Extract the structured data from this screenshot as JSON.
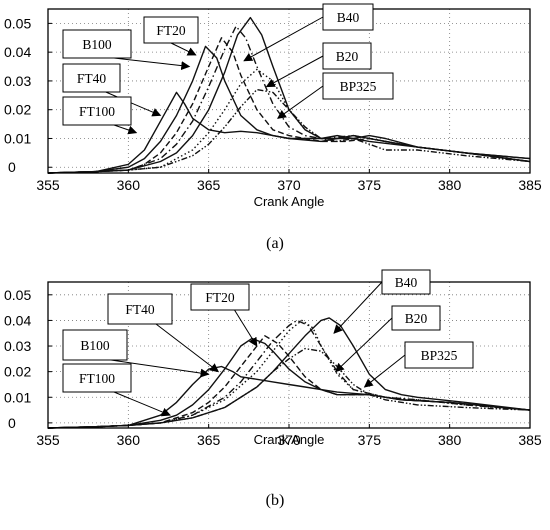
{
  "chart_data": [
    {
      "panel_label": "(a)",
      "type": "line",
      "xlabel": "Crank Angle",
      "ylabel": "",
      "xlim": [
        355,
        385
      ],
      "ylim": [
        -0.002,
        0.055
      ],
      "xticks": [
        "355",
        "360",
        "365",
        "370",
        "375",
        "380",
        "385"
      ],
      "yticks": [
        "0",
        "0.01",
        "0.02",
        "0.03",
        "0.04",
        "0.05"
      ],
      "grid": "dotted",
      "series": [
        {
          "name": "FT100",
          "style": "solid",
          "x": [
            355,
            358,
            360,
            361,
            362,
            362.5,
            363,
            363.5,
            364,
            365,
            366,
            367,
            368,
            369,
            370,
            372,
            373,
            375,
            378,
            381,
            385
          ],
          "y": [
            -0.002,
            -0.0015,
            0.001,
            0.006,
            0.016,
            0.021,
            0.026,
            0.022,
            0.017,
            0.013,
            0.012,
            0.0125,
            0.012,
            0.011,
            0.01,
            0.01,
            0.011,
            0.009,
            0.007,
            0.005,
            0.003
          ]
        },
        {
          "name": "FT40",
          "style": "solid",
          "x": [
            355,
            358,
            360,
            361,
            362,
            363,
            364,
            364.8,
            365.5,
            366,
            367,
            368,
            369,
            370,
            372,
            373,
            374,
            376,
            378,
            381,
            385
          ],
          "y": [
            -0.002,
            -0.0015,
            0.0,
            0.003,
            0.009,
            0.018,
            0.03,
            0.042,
            0.038,
            0.03,
            0.018,
            0.013,
            0.011,
            0.01,
            0.009,
            0.01,
            0.011,
            0.009,
            0.007,
            0.005,
            0.003
          ]
        },
        {
          "name": "B100",
          "style": "dashed",
          "x": [
            355,
            358,
            360,
            361,
            362,
            363,
            364,
            365,
            365.8,
            366.5,
            367,
            368,
            369,
            370,
            372,
            373.5,
            375,
            378,
            381,
            385
          ],
          "y": [
            -0.002,
            -0.0015,
            -0.001,
            0.001,
            0.005,
            0.012,
            0.022,
            0.035,
            0.045,
            0.04,
            0.032,
            0.02,
            0.013,
            0.011,
            0.009,
            0.009,
            0.01,
            0.007,
            0.005,
            0.002
          ]
        },
        {
          "name": "FT20",
          "style": "dashdot",
          "x": [
            355,
            358,
            360,
            362,
            363,
            364,
            365,
            366,
            366.7,
            367.3,
            368,
            369,
            370,
            371,
            372,
            374,
            376,
            378,
            381,
            385
          ],
          "y": [
            -0.002,
            -0.0015,
            -0.001,
            0.003,
            0.008,
            0.016,
            0.028,
            0.041,
            0.049,
            0.045,
            0.035,
            0.022,
            0.014,
            0.011,
            0.01,
            0.011,
            0.009,
            0.007,
            0.005,
            0.002
          ]
        },
        {
          "name": "B40",
          "style": "solid",
          "x": [
            355,
            358,
            360,
            362,
            363,
            364,
            365,
            366,
            366.8,
            367.6,
            368.3,
            369,
            370,
            371,
            372,
            374,
            375,
            376,
            378,
            381,
            385
          ],
          "y": [
            -0.002,
            -0.0015,
            -0.001,
            0.002,
            0.005,
            0.011,
            0.02,
            0.033,
            0.046,
            0.052,
            0.046,
            0.035,
            0.02,
            0.013,
            0.01,
            0.01,
            0.011,
            0.01,
            0.007,
            0.005,
            0.002
          ]
        },
        {
          "name": "B20",
          "style": "dotted",
          "x": [
            355,
            358,
            360,
            362,
            364,
            365,
            366,
            367,
            368,
            369,
            370,
            371,
            372,
            373,
            374,
            376,
            378,
            381,
            385
          ],
          "y": [
            -0.002,
            -0.0015,
            -0.001,
            0.0,
            0.006,
            0.012,
            0.02,
            0.029,
            0.034,
            0.03,
            0.02,
            0.013,
            0.01,
            0.01,
            0.011,
            0.009,
            0.007,
            0.005,
            0.002
          ]
        },
        {
          "name": "BP325",
          "style": "dashdotdot",
          "x": [
            355,
            358,
            360,
            362,
            364,
            365,
            366,
            367,
            368,
            369,
            370,
            371,
            372,
            373,
            374,
            375,
            376,
            378,
            381,
            385
          ],
          "y": [
            -0.002,
            -0.0015,
            -0.001,
            0.0,
            0.004,
            0.008,
            0.014,
            0.021,
            0.027,
            0.026,
            0.02,
            0.014,
            0.01,
            0.009,
            0.01,
            0.008,
            0.006,
            0.006,
            0.004,
            0.002
          ]
        }
      ],
      "callouts": [
        {
          "label": "B100",
          "tip": [
            363.8,
            0.035
          ]
        },
        {
          "label": "FT20",
          "tip": [
            364.2,
            0.039
          ]
        },
        {
          "label": "B40",
          "tip": [
            367.2,
            0.037
          ]
        },
        {
          "label": "FT40",
          "tip": [
            362.0,
            0.018
          ]
        },
        {
          "label": "B20",
          "tip": [
            368.6,
            0.028
          ]
        },
        {
          "label": "BP325",
          "tip": [
            369.3,
            0.017
          ]
        },
        {
          "label": "FT100",
          "tip": [
            360.5,
            0.012
          ]
        }
      ]
    },
    {
      "panel_label": "(b)",
      "type": "line",
      "xlabel": "Crank Angle",
      "ylabel": "",
      "xlim": [
        355,
        385
      ],
      "ylim": [
        -0.002,
        0.055
      ],
      "xticks": [
        "355",
        "360",
        "365",
        "370",
        "375",
        "380",
        "385"
      ],
      "yticks": [
        "0",
        "0.01",
        "0.02",
        "0.03",
        "0.04",
        "0.05"
      ],
      "grid": "dotted",
      "series": [
        {
          "name": "FT100",
          "style": "solid",
          "x": [
            355,
            358,
            360,
            362,
            363,
            364,
            365,
            365.8,
            366.5,
            367,
            368,
            369,
            370,
            371,
            372,
            373,
            375,
            377,
            380,
            385
          ],
          "y": [
            -0.002,
            -0.0015,
            -0.001,
            0.003,
            0.008,
            0.015,
            0.021,
            0.022,
            0.02,
            0.018,
            0.017,
            0.016,
            0.015,
            0.014,
            0.013,
            0.012,
            0.011,
            0.009,
            0.008,
            0.005
          ]
        },
        {
          "name": "FT40",
          "style": "solid",
          "x": [
            355,
            358,
            360,
            362,
            363,
            364,
            365,
            366,
            367,
            367.7,
            368.5,
            369,
            370,
            371,
            372,
            373,
            375,
            377,
            380,
            385
          ],
          "y": [
            -0.002,
            -0.0015,
            -0.001,
            0.001,
            0.003,
            0.007,
            0.013,
            0.021,
            0.03,
            0.033,
            0.031,
            0.028,
            0.021,
            0.016,
            0.013,
            0.011,
            0.011,
            0.009,
            0.008,
            0.005
          ]
        },
        {
          "name": "B100",
          "style": "dashed",
          "x": [
            355,
            358,
            360,
            362,
            364,
            365,
            366,
            367,
            368,
            368.5,
            369.3,
            370,
            371,
            372,
            373,
            375,
            377,
            380,
            385
          ],
          "y": [
            -0.002,
            -0.0015,
            -0.001,
            0.0,
            0.004,
            0.008,
            0.014,
            0.022,
            0.03,
            0.034,
            0.031,
            0.026,
            0.018,
            0.013,
            0.011,
            0.011,
            0.009,
            0.008,
            0.005
          ]
        },
        {
          "name": "FT20",
          "style": "dashdot",
          "x": [
            355,
            358,
            360,
            362,
            364,
            366,
            367,
            368,
            369,
            370,
            370.5,
            371.2,
            372,
            373,
            374,
            376,
            378,
            381,
            385
          ],
          "y": [
            -0.002,
            -0.0015,
            -0.001,
            0.0,
            0.003,
            0.01,
            0.016,
            0.024,
            0.032,
            0.038,
            0.04,
            0.038,
            0.03,
            0.02,
            0.013,
            0.01,
            0.009,
            0.007,
            0.005
          ]
        },
        {
          "name": "B40",
          "style": "solid",
          "x": [
            355,
            358,
            360,
            362,
            364,
            366,
            368,
            369,
            370,
            371,
            372,
            372.5,
            373.2,
            374,
            375,
            376,
            377,
            378,
            381,
            385
          ],
          "y": [
            -0.002,
            -0.0015,
            -0.001,
            0.0,
            0.002,
            0.006,
            0.014,
            0.02,
            0.027,
            0.034,
            0.04,
            0.041,
            0.038,
            0.03,
            0.019,
            0.013,
            0.011,
            0.01,
            0.008,
            0.005
          ]
        },
        {
          "name": "B20",
          "style": "dotted",
          "x": [
            355,
            358,
            360,
            362,
            364,
            366,
            368,
            369,
            370,
            370.8,
            371.5,
            372,
            373,
            374,
            376,
            378,
            381,
            385
          ],
          "y": [
            -0.002,
            -0.0015,
            -0.001,
            0.0,
            0.003,
            0.009,
            0.02,
            0.028,
            0.036,
            0.04,
            0.037,
            0.03,
            0.019,
            0.013,
            0.01,
            0.009,
            0.007,
            0.005
          ]
        },
        {
          "name": "BP325",
          "style": "dashdotdot",
          "x": [
            355,
            358,
            360,
            362,
            364,
            366,
            368,
            369,
            370,
            371,
            372,
            373,
            374,
            375,
            376,
            378,
            381,
            385
          ],
          "y": [
            -0.002,
            -0.0015,
            -0.001,
            0.0,
            0.002,
            0.006,
            0.014,
            0.02,
            0.025,
            0.029,
            0.028,
            0.022,
            0.015,
            0.011,
            0.009,
            0.007,
            0.006,
            0.005
          ]
        }
      ],
      "callouts": [
        {
          "label": "FT40",
          "tip": [
            365.6,
            0.02
          ]
        },
        {
          "label": "FT20",
          "tip": [
            368.0,
            0.03
          ]
        },
        {
          "label": "B40",
          "tip": [
            372.8,
            0.035
          ]
        },
        {
          "label": "B100",
          "tip": [
            365.0,
            0.019
          ]
        },
        {
          "label": "B20",
          "tip": [
            372.9,
            0.02
          ]
        },
        {
          "label": "BP325",
          "tip": [
            374.7,
            0.014
          ]
        },
        {
          "label": "FT100",
          "tip": [
            362.6,
            0.003
          ]
        }
      ]
    }
  ]
}
